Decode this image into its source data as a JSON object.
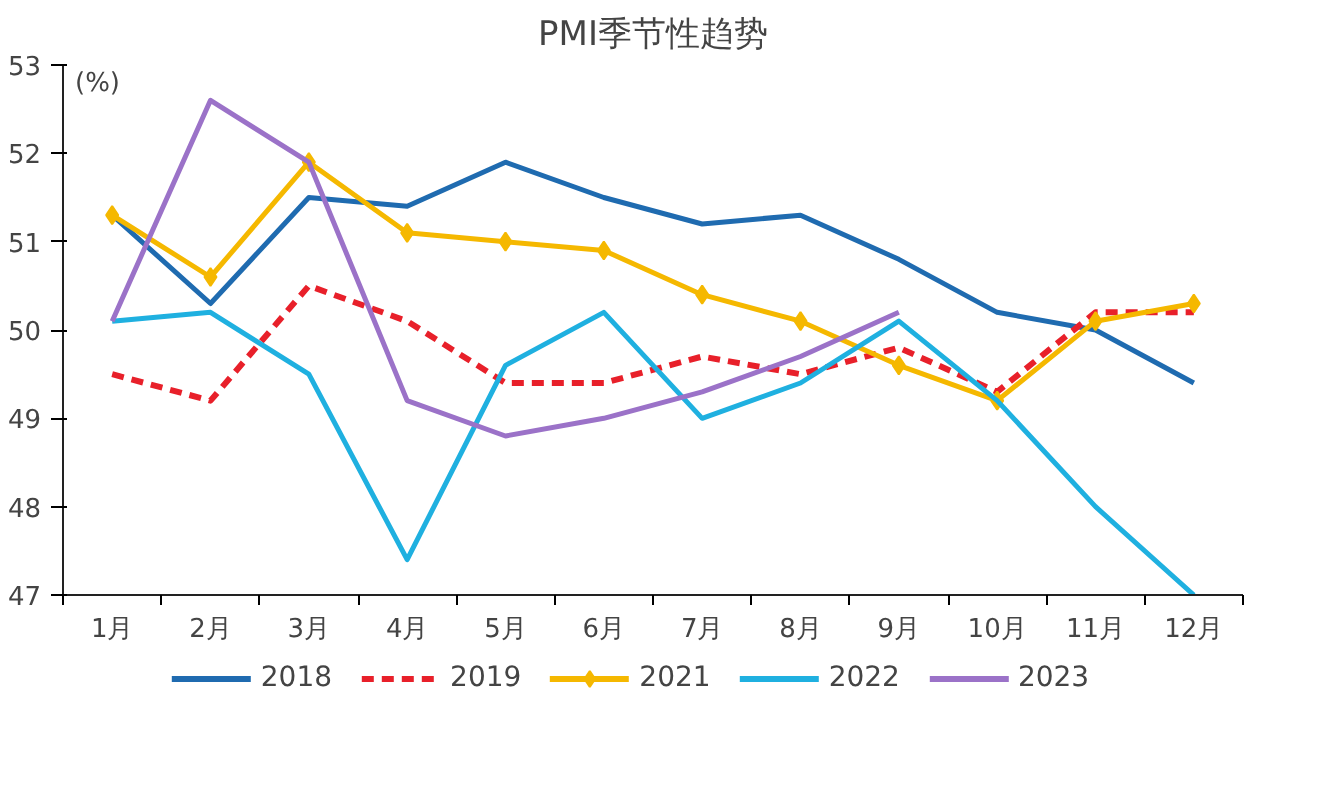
{
  "chart_data": {
    "type": "line",
    "title": "PMI季节性趋势",
    "ylabel": "(%)",
    "categories": [
      "1月",
      "2月",
      "3月",
      "4月",
      "5月",
      "6月",
      "7月",
      "8月",
      "9月",
      "10月",
      "11月",
      "12月"
    ],
    "ylim": [
      47,
      53
    ],
    "yticks": [
      47,
      48,
      49,
      50,
      51,
      52,
      53
    ],
    "grid": false,
    "legend": "bottom",
    "series": [
      {
        "name": "2018",
        "color": "#1f6bb0",
        "line_style": "solid",
        "marker": "none",
        "values": [
          51.3,
          50.3,
          51.5,
          51.4,
          51.9,
          51.5,
          51.2,
          51.3,
          50.8,
          50.2,
          50.0,
          49.4
        ]
      },
      {
        "name": "2019",
        "color": "#e8202a",
        "line_style": "dashed",
        "marker": "none",
        "values": [
          49.5,
          49.2,
          50.5,
          50.1,
          49.4,
          49.4,
          49.7,
          49.5,
          49.8,
          49.3,
          50.2,
          50.2
        ]
      },
      {
        "name": "2021",
        "color": "#f5b800",
        "line_style": "solid",
        "marker": "diamond",
        "values": [
          51.3,
          50.6,
          51.9,
          51.1,
          51.0,
          50.9,
          50.4,
          50.1,
          49.6,
          49.2,
          50.1,
          50.3
        ]
      },
      {
        "name": "2022",
        "color": "#1fb0e0",
        "line_style": "solid",
        "marker": "none",
        "values": [
          50.1,
          50.2,
          49.5,
          47.4,
          49.6,
          50.2,
          49.0,
          49.4,
          50.1,
          49.2,
          48.0,
          47.0
        ]
      },
      {
        "name": "2023",
        "color": "#9b72c8",
        "line_style": "solid",
        "marker": "none",
        "values": [
          50.1,
          52.6,
          51.9,
          49.2,
          48.8,
          49.0,
          49.3,
          49.7,
          50.2,
          null,
          null,
          null
        ]
      }
    ]
  }
}
